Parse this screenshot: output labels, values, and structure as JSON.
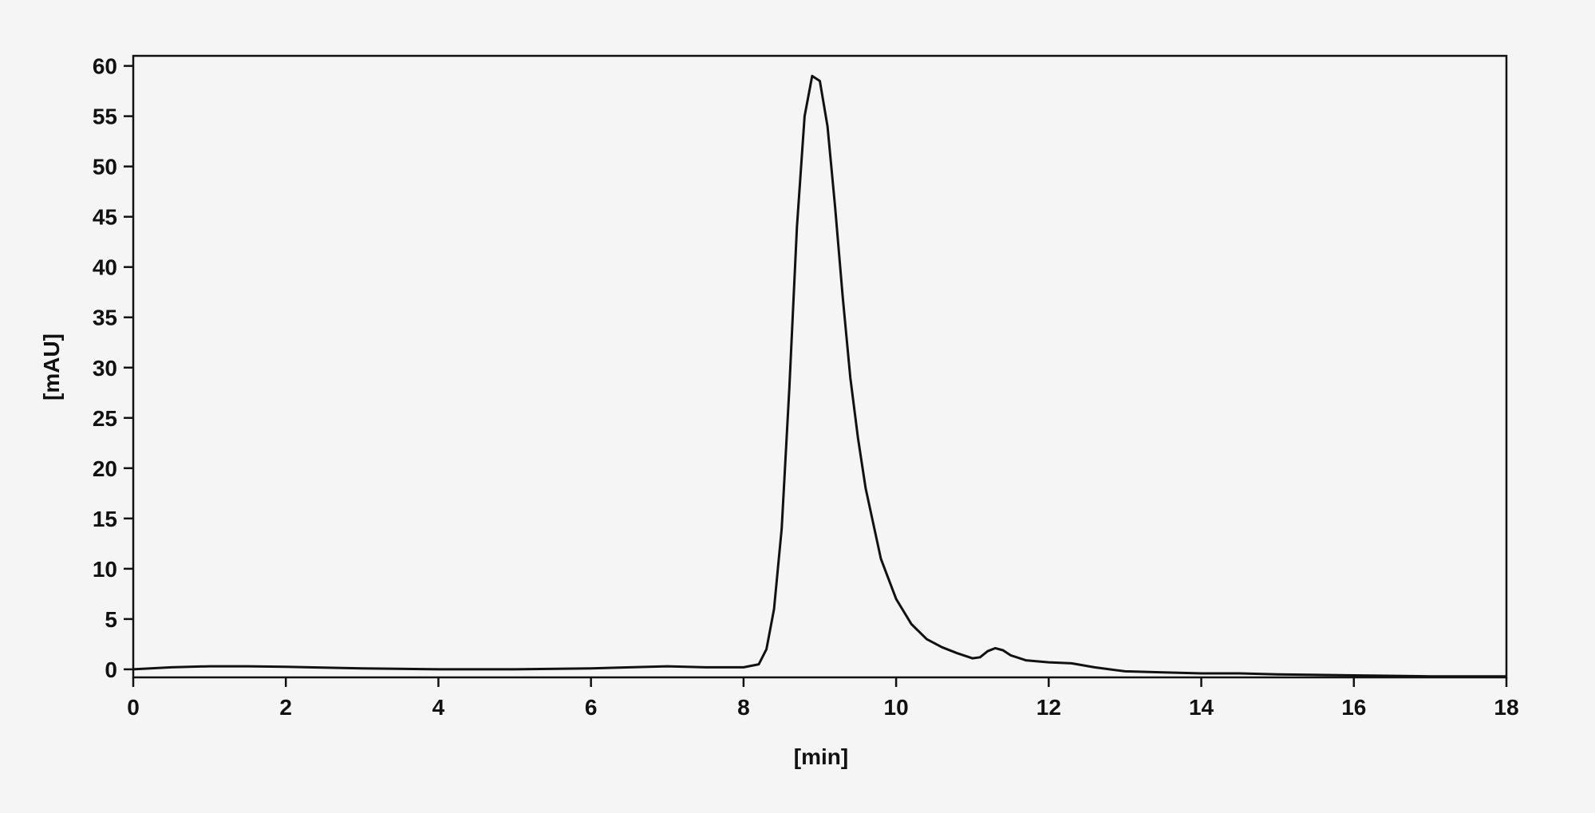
{
  "chart_data": {
    "type": "line",
    "x_label": "[min]",
    "y_label": "[mAU]",
    "xlim": [
      0,
      18
    ],
    "xticks": [
      0,
      2,
      4,
      6,
      8,
      10,
      12,
      14,
      16,
      18
    ],
    "ylim": [
      -0.8,
      61
    ],
    "yticks": [
      0,
      5,
      10,
      15,
      20,
      25,
      30,
      35,
      40,
      45,
      50,
      55,
      60
    ],
    "grid": false,
    "series": [
      {
        "name": null,
        "color": "#111111",
        "x": [
          0,
          0.5,
          1,
          1.5,
          2,
          3,
          4,
          5,
          6,
          7,
          7.5,
          8,
          8.2,
          8.3,
          8.4,
          8.5,
          8.6,
          8.7,
          8.8,
          8.9,
          9.0,
          9.1,
          9.2,
          9.3,
          9.4,
          9.5,
          9.6,
          9.8,
          10,
          10.2,
          10.4,
          10.6,
          10.8,
          11,
          11.1,
          11.2,
          11.3,
          11.4,
          11.5,
          11.7,
          12,
          12.3,
          12.6,
          13,
          13.5,
          14,
          14.5,
          15,
          16,
          17,
          18
        ],
        "values": [
          0,
          0.2,
          0.3,
          0.3,
          0.25,
          0.1,
          0,
          0,
          0.1,
          0.3,
          0.2,
          0.2,
          0.5,
          2,
          6,
          14,
          28,
          44,
          55,
          59,
          58.5,
          54,
          46,
          37,
          29,
          23,
          18,
          11,
          7,
          4.5,
          3,
          2.2,
          1.6,
          1.1,
          1.2,
          1.8,
          2.1,
          1.9,
          1.4,
          0.9,
          0.7,
          0.6,
          0.2,
          -0.2,
          -0.3,
          -0.4,
          -0.4,
          -0.5,
          -0.6,
          -0.7,
          -0.7
        ]
      }
    ]
  }
}
